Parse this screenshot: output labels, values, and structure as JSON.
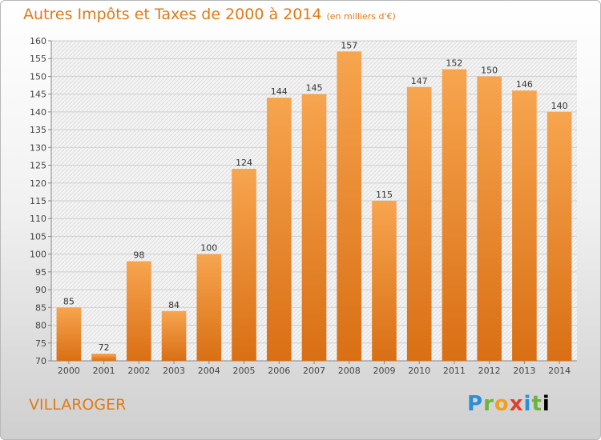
{
  "header": {
    "title": "Autres Impôts et Taxes de 2000 à 2014",
    "unit": "(en milliers d'€)"
  },
  "footer": {
    "city": "VILLAROGER",
    "logo": "Proxiti"
  },
  "colors": {
    "accent": "#e07a18",
    "bar_top": "#f7a54f",
    "bar_bottom": "#d96f14",
    "grid": "#d0d0d0"
  },
  "chart_data": {
    "type": "bar",
    "title": "Autres Impôts et Taxes de 2000 à 2014",
    "subtitle": "(en milliers d'€)",
    "categories": [
      "2000",
      "2001",
      "2002",
      "2003",
      "2004",
      "2005",
      "2006",
      "2007",
      "2008",
      "2009",
      "2010",
      "2011",
      "2012",
      "2013",
      "2014"
    ],
    "values": [
      85,
      72,
      98,
      84,
      100,
      124,
      144,
      145,
      157,
      115,
      147,
      152,
      150,
      146,
      140
    ],
    "ylim": [
      70,
      160
    ],
    "yticks": [
      70,
      75,
      80,
      85,
      90,
      95,
      100,
      105,
      110,
      115,
      120,
      125,
      130,
      135,
      140,
      145,
      150,
      155,
      160
    ],
    "grid": true,
    "legend": "none"
  }
}
